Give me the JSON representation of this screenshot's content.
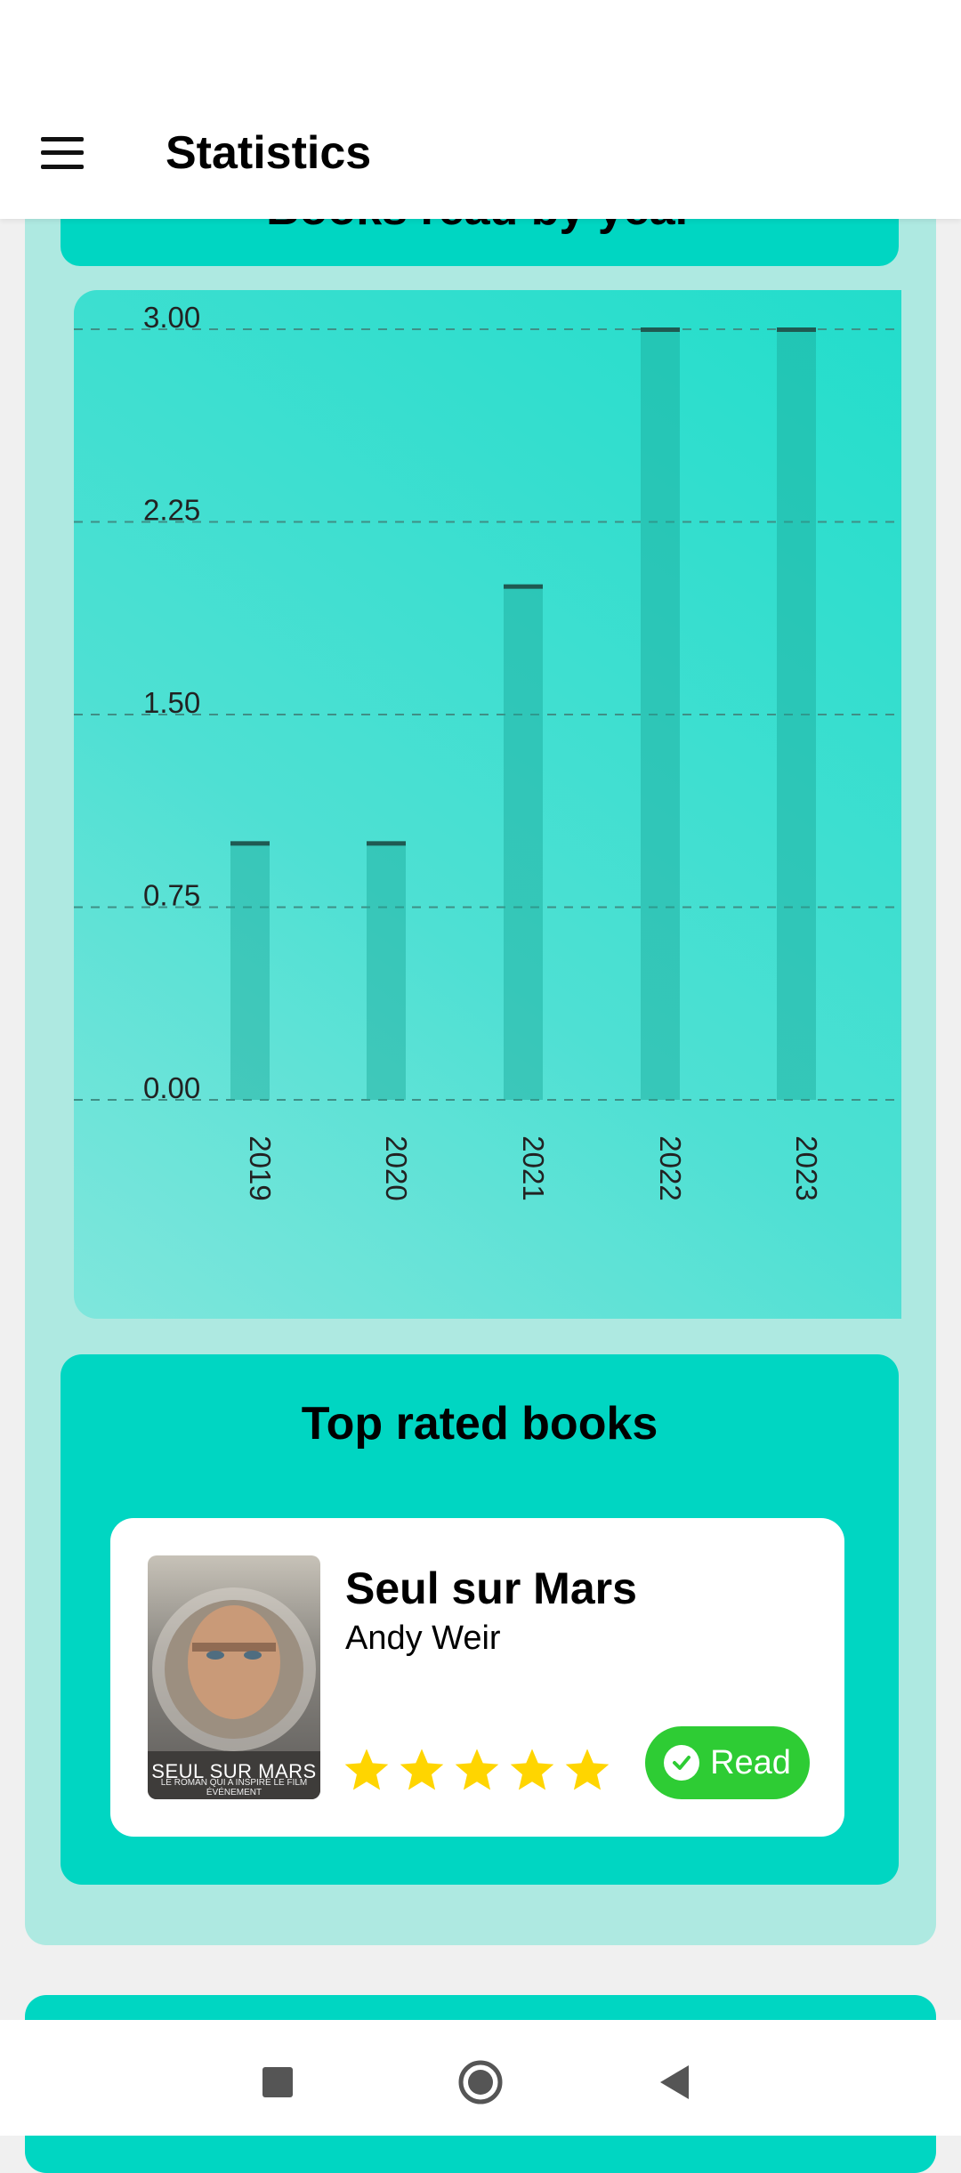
{
  "app_bar": {
    "title": "Statistics"
  },
  "books_read_card": {
    "title": "Books read by year"
  },
  "chart_data": {
    "type": "bar",
    "categories": [
      "2019",
      "2020",
      "2021",
      "2022",
      "2023"
    ],
    "values": [
      1,
      1,
      2,
      3,
      3
    ],
    "ylim": [
      0,
      3
    ],
    "yticks": [
      "0.00",
      "0.75",
      "1.50",
      "2.25",
      "3.00"
    ],
    "ytick_values": [
      0,
      0.75,
      1.5,
      2.25,
      3
    ],
    "grid": "dashed horizontal",
    "xlabel": "",
    "ylabel": ""
  },
  "top_rated": {
    "title": "Top rated books",
    "books": [
      {
        "title": "Seul sur Mars",
        "author": "Andy Weir",
        "cover_text": "SEUL SUR MARS",
        "cover_subtext": "LE ROMAN QUI A INSPIRÉ LE FILM ÉVÉNEMENT",
        "rating": 5,
        "status_label": "Read",
        "status_icon": "check-circle-icon"
      }
    ]
  },
  "colors": {
    "accent": "#00d6c2",
    "panel": "#aee9e1",
    "star": "#ffd500",
    "read_status": "#2ecc34"
  },
  "nav_bar": {
    "icons": [
      "recents-icon",
      "home-icon",
      "back-icon"
    ]
  }
}
